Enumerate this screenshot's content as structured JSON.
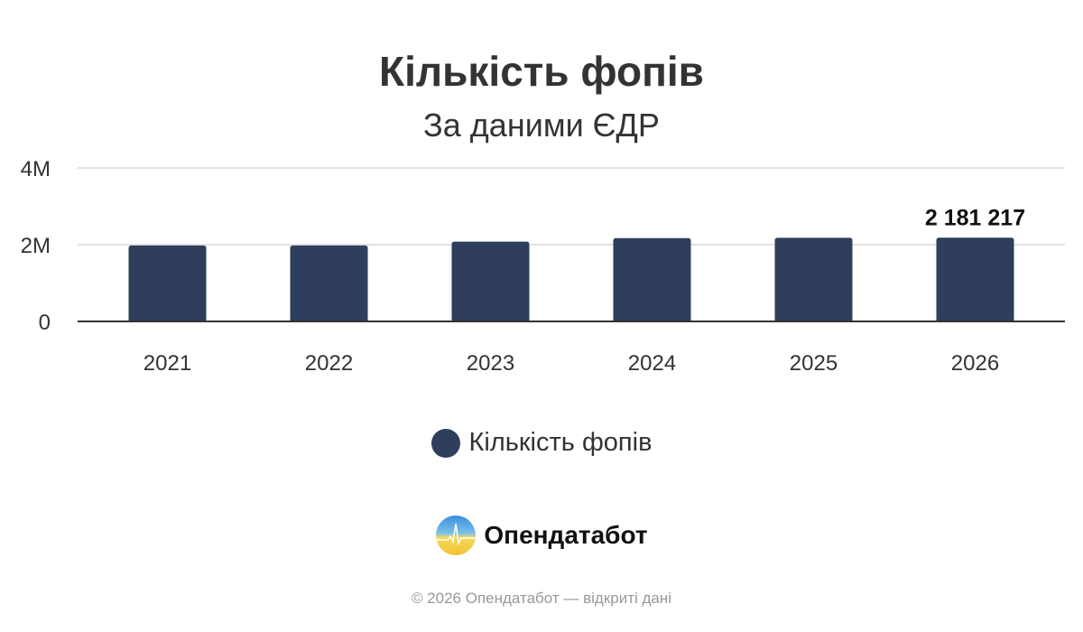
{
  "chart_data": {
    "type": "bar",
    "title": "Кількість фопів",
    "subtitle": "За даними ЄДР",
    "categories": [
      "2021",
      "2022",
      "2023",
      "2024",
      "2025",
      "2026"
    ],
    "series": [
      {
        "name": "Кількість фопів",
        "values": [
          1980000,
          1980000,
          2080000,
          2170000,
          2180000,
          2181217
        ],
        "color": "#2e3e5c"
      }
    ],
    "data_labels": [
      null,
      null,
      null,
      null,
      null,
      "2 181 217"
    ],
    "ylim": [
      0,
      4000000
    ],
    "yticks": [
      {
        "value": 0,
        "label": "0"
      },
      {
        "value": 2000000,
        "label": "2M"
      },
      {
        "value": 4000000,
        "label": "4M"
      }
    ],
    "grid": true,
    "legend": "bottom"
  },
  "branding": {
    "logo_text": "Опендатабот",
    "logo_icon": "opendatabot-logo-icon"
  },
  "footer": "© 2026 Опендатабот — відкриті дані"
}
